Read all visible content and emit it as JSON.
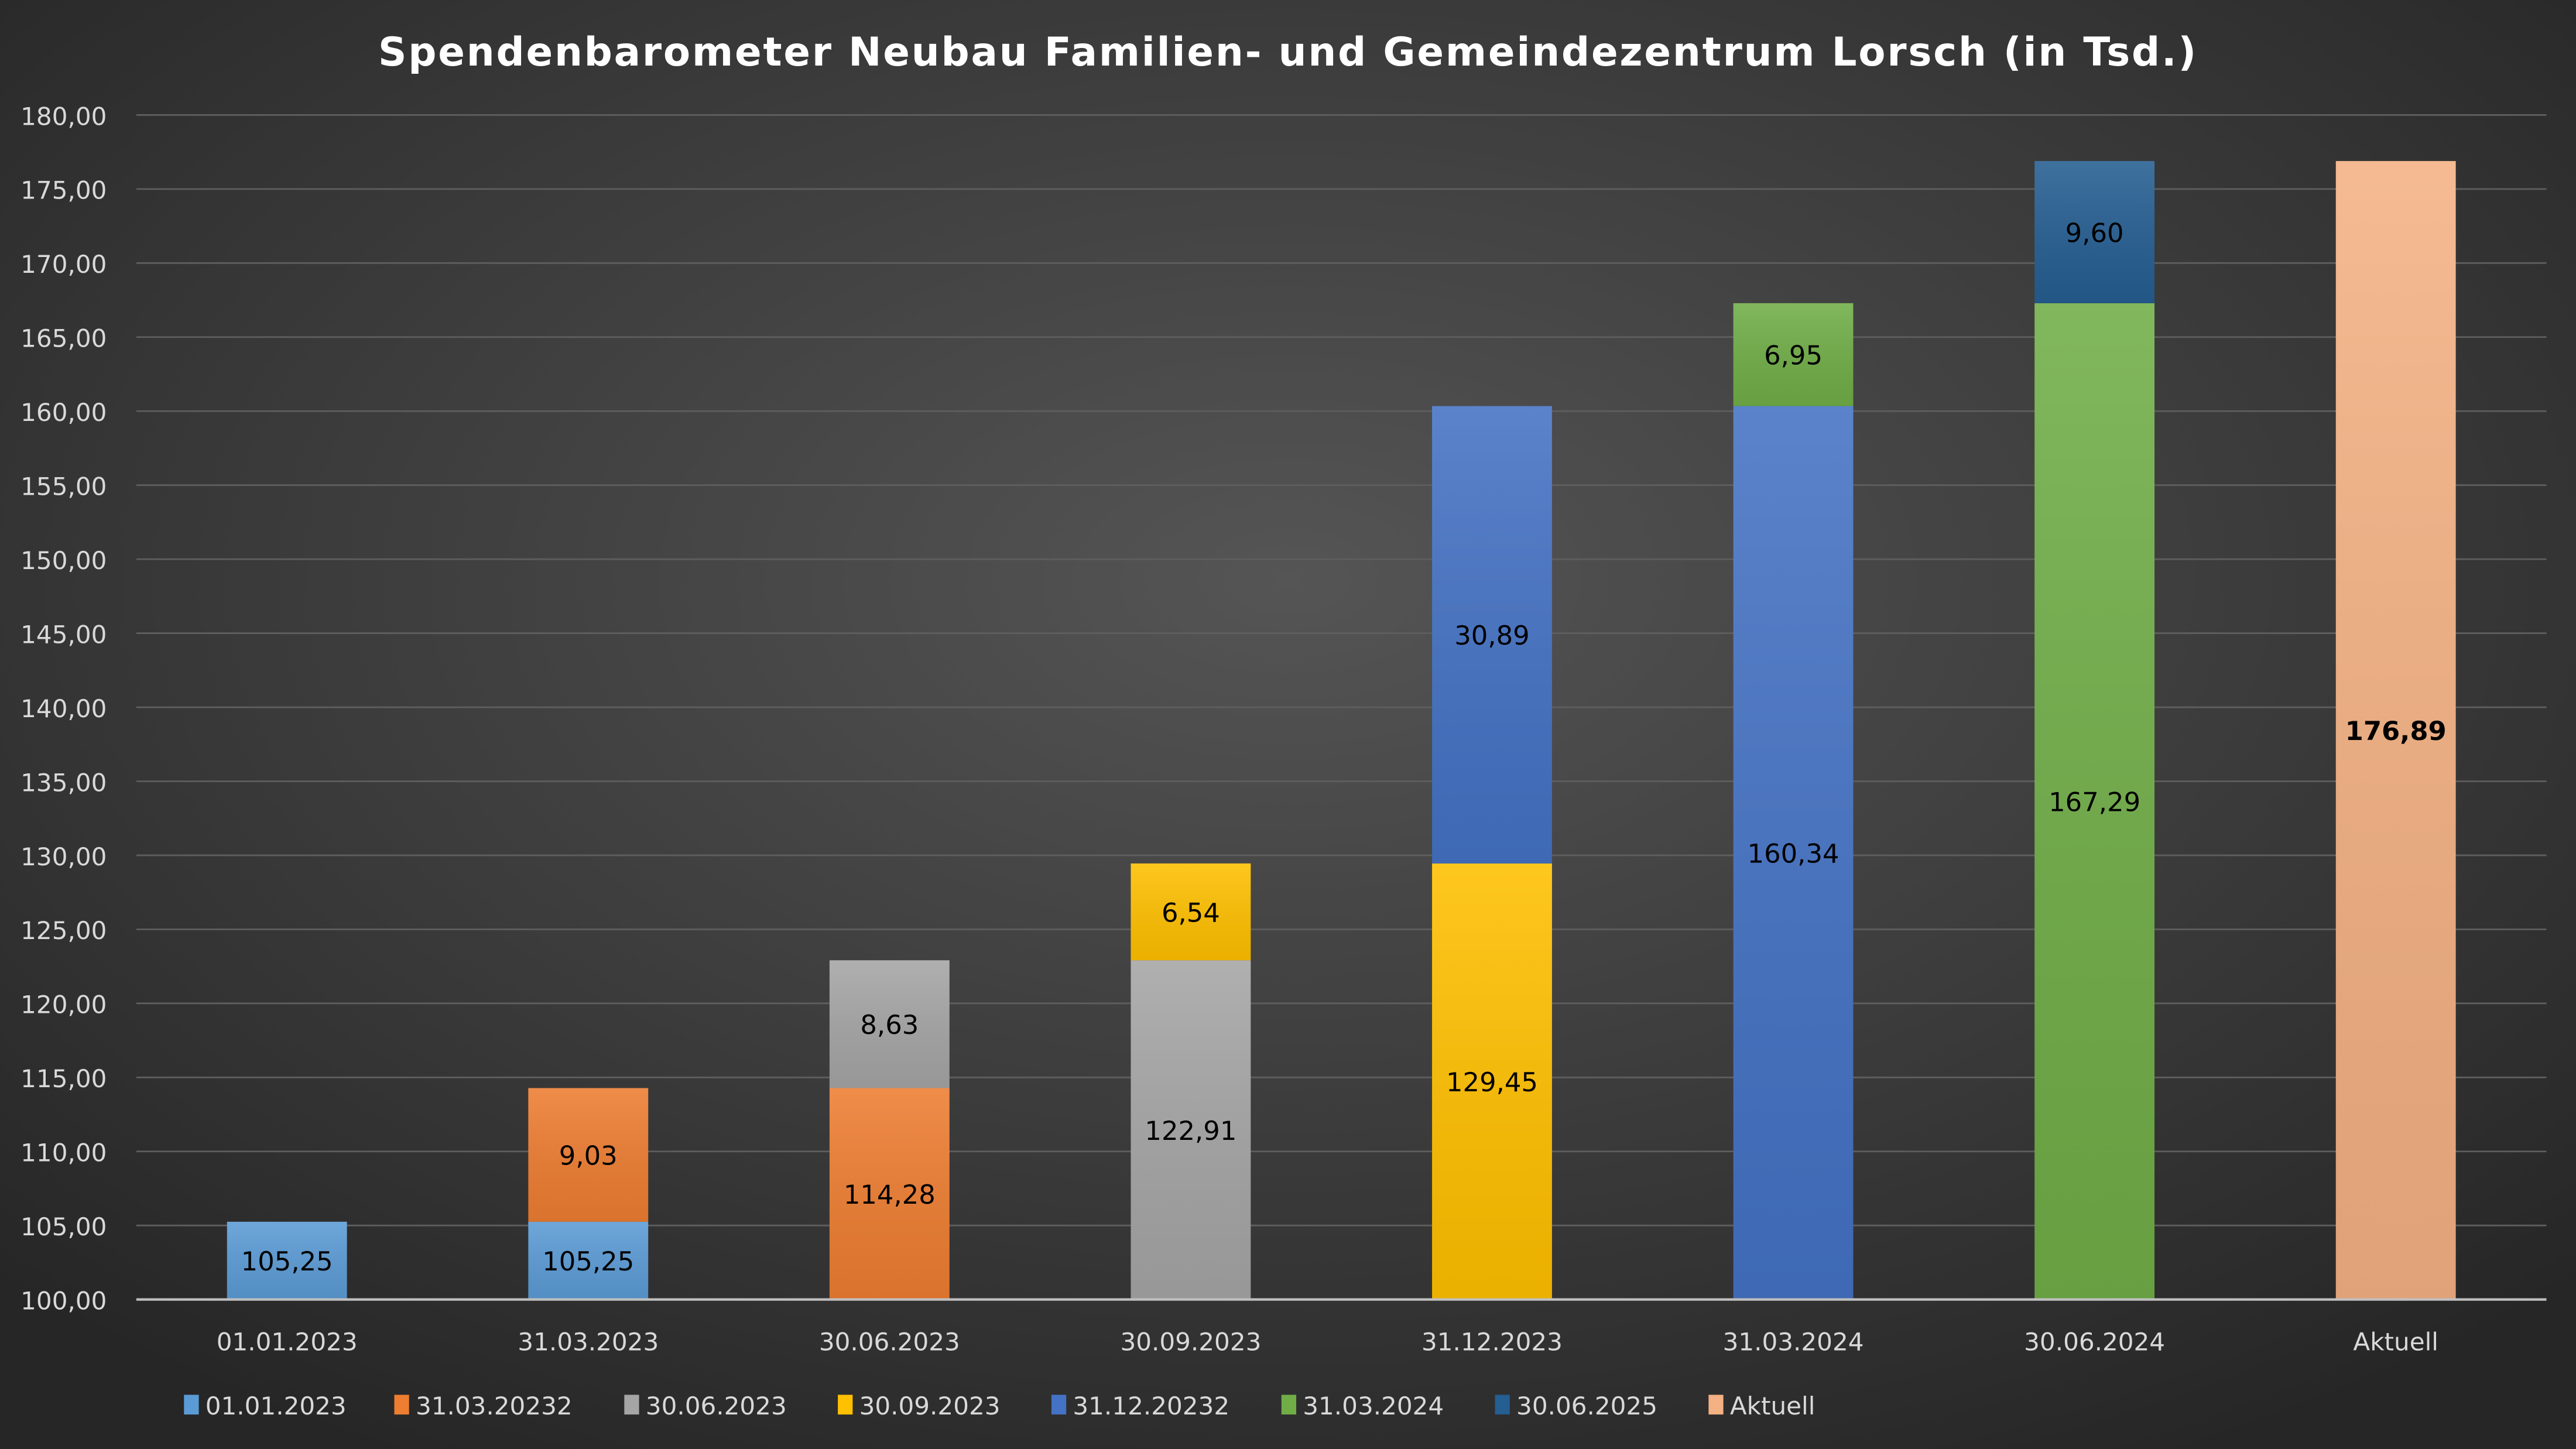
{
  "chart_data": {
    "type": "bar",
    "stacked": true,
    "title": "Spendenbarometer Neubau Familien- und Gemeindezentrum Lorsch (in Tsd.)",
    "xlabel": "",
    "ylabel": "",
    "ylim": [
      100,
      180
    ],
    "ytick_step": 5,
    "yticks": [
      "100,00",
      "105,00",
      "110,00",
      "115,00",
      "120,00",
      "125,00",
      "130,00",
      "135,00",
      "140,00",
      "145,00",
      "150,00",
      "155,00",
      "160,00",
      "165,00",
      "170,00",
      "175,00",
      "180,00"
    ],
    "grid": true,
    "legend_position": "bottom",
    "categories": [
      "01.01.2023",
      "31.03.2023",
      "30.06.2023",
      "30.09.2023",
      "31.12.2023",
      "31.03.2024",
      "30.06.2024",
      "Aktuell"
    ],
    "series": [
      {
        "name": "01.01.2023",
        "color": "#5B9BD5"
      },
      {
        "name": "31.03.20232",
        "color": "#ED7D31"
      },
      {
        "name": "30.06.2023",
        "color": "#A5A5A5"
      },
      {
        "name": "30.09.2023",
        "color": "#FFC000"
      },
      {
        "name": "31.12.20232",
        "color": "#4472C4"
      },
      {
        "name": "31.03.2024",
        "color": "#70AD47"
      },
      {
        "name": "30.06.2025",
        "color": "#255E91"
      },
      {
        "name": "Aktuell",
        "color": "#F4B183"
      }
    ],
    "bars": [
      {
        "category": "01.01.2023",
        "segments": [
          {
            "series": 0,
            "value": 105.25,
            "label": "105,25"
          }
        ]
      },
      {
        "category": "31.03.2023",
        "segments": [
          {
            "series": 0,
            "value": 105.25,
            "label": "105,25"
          },
          {
            "series": 1,
            "value": 9.03,
            "label": "9,03"
          }
        ]
      },
      {
        "category": "30.06.2023",
        "segments": [
          {
            "series": 1,
            "value": 114.28,
            "label": "114,28"
          },
          {
            "series": 2,
            "value": 8.63,
            "label": "8,63"
          }
        ]
      },
      {
        "category": "30.09.2023",
        "segments": [
          {
            "series": 2,
            "value": 122.91,
            "label": "122,91"
          },
          {
            "series": 3,
            "value": 6.54,
            "label": "6,54"
          }
        ]
      },
      {
        "category": "31.12.2023",
        "segments": [
          {
            "series": 3,
            "value": 129.45,
            "label": "129,45"
          },
          {
            "series": 4,
            "value": 30.89,
            "label": "30,89"
          }
        ]
      },
      {
        "category": "31.03.2024",
        "segments": [
          {
            "series": 4,
            "value": 160.34,
            "label": "160,34"
          },
          {
            "series": 5,
            "value": 6.95,
            "label": "6,95"
          }
        ]
      },
      {
        "category": "30.06.2024",
        "segments": [
          {
            "series": 5,
            "value": 167.29,
            "label": "167,29"
          },
          {
            "series": 6,
            "value": 9.6,
            "label": "9,60"
          }
        ]
      },
      {
        "category": "Aktuell",
        "segments": [
          {
            "series": 7,
            "value": 176.89,
            "label": "176,89",
            "bold": true
          }
        ]
      }
    ]
  }
}
